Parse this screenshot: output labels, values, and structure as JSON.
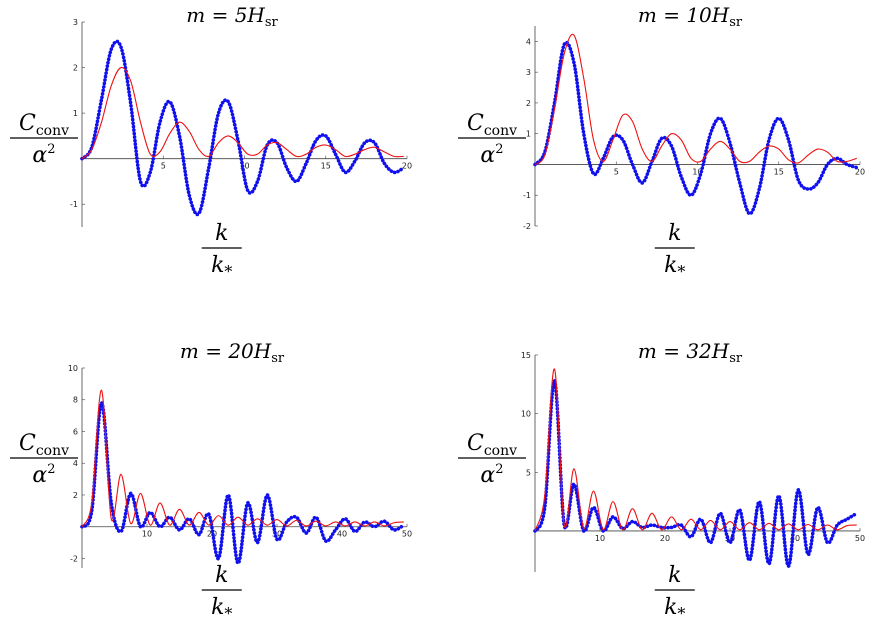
{
  "chart_data": [
    {
      "type": "line",
      "title": "m = 5H",
      "title_sub": "sr",
      "ylabel": "C",
      "ylabel_sub": "conv",
      "ylabel_den": "α",
      "ylabel_den_sup": "2",
      "xlabel": "k",
      "xlabel_den": "k",
      "xlabel_den_sub": "*",
      "xlim": [
        0,
        20
      ],
      "ylim": [
        -1.5,
        3
      ],
      "xticks": [
        5,
        10,
        15,
        20
      ],
      "yticks": [
        -1,
        1,
        2,
        3
      ],
      "series": [
        {
          "style": "dotted",
          "color": "#1010ee",
          "x": [
            0,
            0.6,
            1.2,
            1.8,
            2.4,
            3.0,
            3.6,
            4.2,
            4.8,
            5.4,
            6.0,
            6.6,
            7.2,
            7.8,
            8.4,
            9.0,
            9.6,
            10.2,
            10.8,
            11.4,
            12.0,
            12.6,
            13.2,
            13.8,
            14.4,
            15.0,
            15.6,
            16.2,
            16.8,
            17.4,
            18.0,
            18.6,
            19.2,
            19.8
          ],
          "y": [
            0,
            0.25,
            1.3,
            2.4,
            2.45,
            1.2,
            -0.5,
            -0.3,
            0.8,
            1.25,
            0.5,
            -0.8,
            -1.2,
            -0.2,
            1.0,
            1.25,
            0.4,
            -0.7,
            -0.5,
            0.3,
            0.35,
            -0.2,
            -0.5,
            -0.1,
            0.4,
            0.5,
            0.1,
            -0.3,
            -0.05,
            0.35,
            0.35,
            -0.1,
            -0.3,
            -0.2
          ]
        },
        {
          "style": "solid",
          "color": "#ee1111",
          "x": [
            0,
            0.6,
            1.2,
            1.8,
            2.4,
            3.0,
            3.6,
            4.2,
            4.8,
            5.4,
            6.0,
            6.6,
            7.2,
            7.8,
            8.4,
            9.0,
            9.6,
            10.2,
            10.8,
            11.4,
            12.0,
            12.6,
            13.2,
            13.8,
            14.4,
            15.0,
            15.6,
            16.2,
            16.8,
            17.4,
            18.0,
            18.6,
            19.2,
            19.8
          ],
          "y": [
            0,
            0.2,
            0.8,
            1.6,
            2.0,
            1.7,
            0.8,
            0.1,
            0.15,
            0.55,
            0.8,
            0.6,
            0.2,
            0.05,
            0.35,
            0.5,
            0.35,
            0.1,
            0.1,
            0.3,
            0.35,
            0.2,
            0.05,
            0.1,
            0.25,
            0.3,
            0.2,
            0.05,
            0.1,
            0.2,
            0.25,
            0.15,
            0.05,
            0.05
          ]
        }
      ]
    },
    {
      "type": "line",
      "title": "m = 10H",
      "title_sub": "sr",
      "ylabel": "C",
      "ylabel_sub": "conv",
      "ylabel_den": "α",
      "ylabel_den_sup": "2",
      "xlabel": "k",
      "xlabel_den": "k",
      "xlabel_den_sub": "*",
      "xlim": [
        0,
        20
      ],
      "ylim": [
        -2,
        4.5
      ],
      "xticks": [
        5,
        10,
        15,
        20
      ],
      "yticks": [
        -2,
        -1,
        1,
        2,
        3,
        4
      ],
      "series": [
        {
          "style": "dotted",
          "color": "#1010ee",
          "x": [
            0,
            0.6,
            1.2,
            1.8,
            2.4,
            3.0,
            3.6,
            4.2,
            4.8,
            5.4,
            6.0,
            6.6,
            7.2,
            7.8,
            8.4,
            9.0,
            9.6,
            10.2,
            10.8,
            11.4,
            12.0,
            12.6,
            13.2,
            13.8,
            14.4,
            15.0,
            15.6,
            16.2,
            16.8,
            17.4,
            18.0,
            18.6,
            19.2,
            19.8
          ],
          "y": [
            0,
            0.4,
            2.0,
            3.9,
            3.3,
            1.0,
            -0.3,
            0.2,
            0.9,
            0.8,
            0.0,
            -0.6,
            0.1,
            0.85,
            0.6,
            -0.4,
            -1.0,
            -0.3,
            1.0,
            1.5,
            0.7,
            -0.6,
            -1.6,
            -0.8,
            0.8,
            1.5,
            0.8,
            -0.5,
            -0.8,
            -0.6,
            0.0,
            0.2,
            0.0,
            -0.1
          ]
        },
        {
          "style": "solid",
          "color": "#ee1111",
          "x": [
            0,
            0.6,
            1.2,
            1.8,
            2.4,
            3.0,
            3.6,
            4.2,
            4.8,
            5.4,
            6.0,
            6.6,
            7.2,
            7.8,
            8.4,
            9.0,
            9.6,
            10.2,
            10.8,
            11.4,
            12.0,
            12.6,
            13.2,
            13.8,
            14.4,
            15.0,
            15.6,
            16.2,
            16.8,
            17.4,
            18.0,
            18.6,
            19.2,
            19.8
          ],
          "y": [
            0,
            0.3,
            1.8,
            3.6,
            4.2,
            2.8,
            0.8,
            0.1,
            0.8,
            1.6,
            1.4,
            0.5,
            0.1,
            0.6,
            1.0,
            0.8,
            0.2,
            0.1,
            0.5,
            0.75,
            0.5,
            0.1,
            0.1,
            0.4,
            0.6,
            0.5,
            0.15,
            0.05,
            0.3,
            0.5,
            0.4,
            0.1,
            0.1,
            0.2
          ]
        }
      ]
    },
    {
      "type": "line",
      "title": "m = 20H",
      "title_sub": "sr",
      "ylabel": "C",
      "ylabel_sub": "conv",
      "ylabel_den": "α",
      "ylabel_den_sup": "2",
      "xlabel": "k",
      "xlabel_den": "k",
      "xlabel_den_sub": "*",
      "xlim": [
        0,
        50
      ],
      "ylim": [
        -2.6,
        10
      ],
      "xticks": [
        10,
        20,
        30,
        40,
        50
      ],
      "yticks": [
        -2,
        2,
        4,
        6,
        8,
        10
      ],
      "series": [
        {
          "style": "dotted",
          "color": "#1010ee",
          "x": [
            0,
            1.5,
            3.0,
            4.5,
            6.0,
            7.5,
            9.0,
            10.5,
            12.0,
            13.5,
            15.0,
            16.5,
            18.0,
            19.5,
            21.0,
            22.5,
            24.0,
            25.5,
            27.0,
            28.5,
            30.0,
            31.5,
            33.0,
            34.5,
            36.0,
            37.5,
            39.0,
            40.5,
            42.0,
            43.5,
            45.0,
            46.5,
            48.0,
            49.5
          ],
          "y": [
            0,
            1.0,
            7.8,
            1.5,
            -0.3,
            2.1,
            0.0,
            0.9,
            0.0,
            0.6,
            -0.2,
            0.5,
            -0.5,
            0.8,
            -2.0,
            2.0,
            -2.3,
            1.5,
            -1.0,
            2.0,
            -0.8,
            0.3,
            0.6,
            -0.4,
            0.6,
            -0.9,
            -0.2,
            0.5,
            -0.3,
            0.3,
            0.0,
            0.35,
            -0.2,
            0.1
          ]
        },
        {
          "style": "solid",
          "color": "#ee1111",
          "x": [
            0,
            1.5,
            3.0,
            4.5,
            6.0,
            7.5,
            9.0,
            10.5,
            12.0,
            13.5,
            15.0,
            16.5,
            18.0,
            19.5,
            21.0,
            22.5,
            24.0,
            25.5,
            27.0,
            28.5,
            30.0,
            31.5,
            33.0,
            34.5,
            36.0,
            37.5,
            39.0,
            40.5,
            42.0,
            43.5,
            45.0,
            46.5,
            48.0,
            49.5
          ],
          "y": [
            0,
            1.5,
            8.6,
            0.5,
            3.3,
            0.2,
            2.1,
            0.1,
            1.5,
            0.1,
            1.1,
            0.1,
            0.9,
            0.1,
            0.7,
            0.1,
            0.6,
            0.1,
            0.5,
            0.1,
            0.45,
            0.05,
            0.4,
            0.05,
            0.35,
            0.05,
            0.3,
            0.05,
            0.3,
            0.05,
            0.3,
            0.05,
            0.25,
            0.3
          ]
        }
      ]
    },
    {
      "type": "line",
      "title": "m = 32H",
      "title_sub": "sr",
      "ylabel": "C",
      "ylabel_sub": "conv",
      "ylabel_den": "α",
      "ylabel_den_sup": "2",
      "xlabel": "k",
      "xlabel_den": "k",
      "xlabel_den_sub": "*",
      "xlim": [
        0,
        50
      ],
      "ylim": [
        -3.5,
        15
      ],
      "xticks": [
        10,
        20,
        30,
        40,
        50
      ],
      "yticks": [
        5,
        10,
        15
      ],
      "series": [
        {
          "style": "dotted",
          "color": "#1010ee",
          "x": [
            0,
            1.5,
            3.0,
            4.5,
            6.0,
            7.5,
            9.0,
            10.5,
            12.0,
            13.5,
            15.0,
            16.5,
            18.0,
            19.5,
            21.0,
            22.5,
            24.0,
            25.5,
            27.0,
            28.5,
            30.0,
            31.5,
            33.0,
            34.5,
            36.0,
            37.5,
            39.0,
            40.5,
            42.0,
            43.5,
            45.0,
            46.5,
            48.0,
            49.5
          ],
          "y": [
            0,
            2.0,
            12.8,
            0.5,
            4.0,
            0.0,
            2.0,
            0.0,
            1.2,
            0.2,
            0.8,
            0.3,
            0.5,
            0.3,
            0.3,
            0.5,
            -0.5,
            1.0,
            -1.0,
            1.5,
            -1.0,
            1.8,
            -2.5,
            2.5,
            -2.8,
            3.0,
            -3.0,
            3.5,
            -2.0,
            2.0,
            -1.0,
            0.5,
            1.0,
            1.5
          ]
        },
        {
          "style": "solid",
          "color": "#ee1111",
          "x": [
            0,
            1.5,
            3.0,
            4.5,
            6.0,
            7.5,
            9.0,
            10.5,
            12.0,
            13.5,
            15.0,
            16.5,
            18.0,
            19.5,
            21.0,
            22.5,
            24.0,
            25.5,
            27.0,
            28.5,
            30.0,
            31.5,
            33.0,
            34.5,
            36.0,
            37.5,
            39.0,
            40.5,
            42.0,
            43.5,
            45.0,
            46.5,
            48.0,
            49.5
          ],
          "y": [
            0,
            3.0,
            13.8,
            0.5,
            5.3,
            0.2,
            3.4,
            0.1,
            2.5,
            0.1,
            1.9,
            0.1,
            1.5,
            0.1,
            1.2,
            0.1,
            1.0,
            0.1,
            0.9,
            0.1,
            0.8,
            0.1,
            0.7,
            0.1,
            0.65,
            0.1,
            0.6,
            0.1,
            0.55,
            0.1,
            0.5,
            0.1,
            0.45,
            0.5
          ]
        }
      ]
    }
  ]
}
